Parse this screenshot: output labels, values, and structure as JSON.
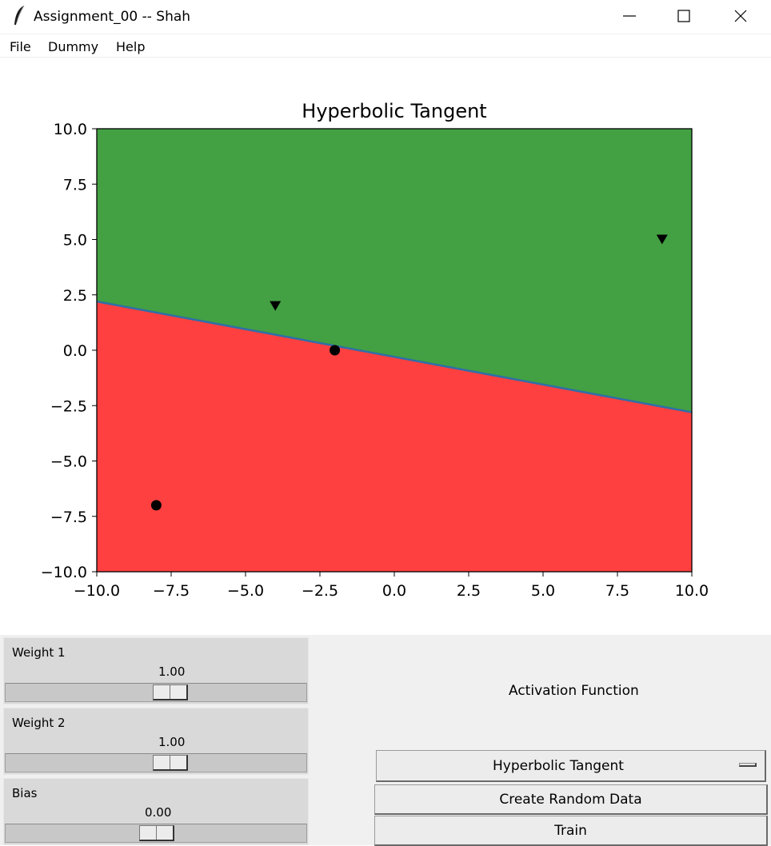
{
  "window": {
    "title": "Assignment_00 -- Shah",
    "minimize_icon": "minimize-icon",
    "maximize_icon": "maximize-icon",
    "close_icon": "close-icon",
    "app_icon": "feather-icon"
  },
  "menu": {
    "items": [
      "File",
      "Dummy",
      "Help"
    ]
  },
  "chart_data": {
    "type": "scatter",
    "title": "Hyperbolic Tangent",
    "xlabel": "",
    "ylabel": "",
    "xlim": [
      -10,
      10
    ],
    "ylim": [
      -10,
      10
    ],
    "x_ticks": [
      -10,
      -7.5,
      -5,
      -2.5,
      0,
      2.5,
      5,
      7.5,
      10
    ],
    "y_ticks": [
      -10,
      -7.5,
      -5,
      -2.5,
      0,
      2.5,
      5,
      7.5,
      10
    ],
    "x_tick_labels": [
      "−10.0",
      "−7.5",
      "−5.0",
      "−2.5",
      "0.0",
      "2.5",
      "5.0",
      "7.5",
      "10.0"
    ],
    "y_tick_labels": [
      "10.0",
      "7.5",
      "5.0",
      "2.5",
      "0.0",
      "−2.5",
      "−5.0",
      "−7.5",
      "−10.0"
    ],
    "grid": false,
    "boundary_line": {
      "x": [
        -10,
        10
      ],
      "y": [
        2.2,
        -2.8
      ],
      "color": "#2f6ea8"
    },
    "regions": {
      "above_color": "#43a043",
      "below_color": "#ff4040"
    },
    "series": [
      {
        "marker": "circle",
        "color": "#000000",
        "points": [
          [
            -8,
            -7
          ],
          [
            -2,
            0
          ]
        ]
      },
      {
        "marker": "triangle-down",
        "color": "#000000",
        "points": [
          [
            -4,
            2
          ],
          [
            9,
            5
          ]
        ]
      }
    ]
  },
  "controls": {
    "sliders": [
      {
        "label": "Weight 1",
        "value": "1.00",
        "numeric": 1.0
      },
      {
        "label": "Weight 2",
        "value": "1.00",
        "numeric": 1.0
      },
      {
        "label": "Bias",
        "value": "0.00",
        "numeric": 0.0
      }
    ],
    "activation_label": "Activation Function",
    "activation_selected": "Hyperbolic Tangent",
    "create_button": "Create Random Data",
    "train_button": "Train"
  }
}
